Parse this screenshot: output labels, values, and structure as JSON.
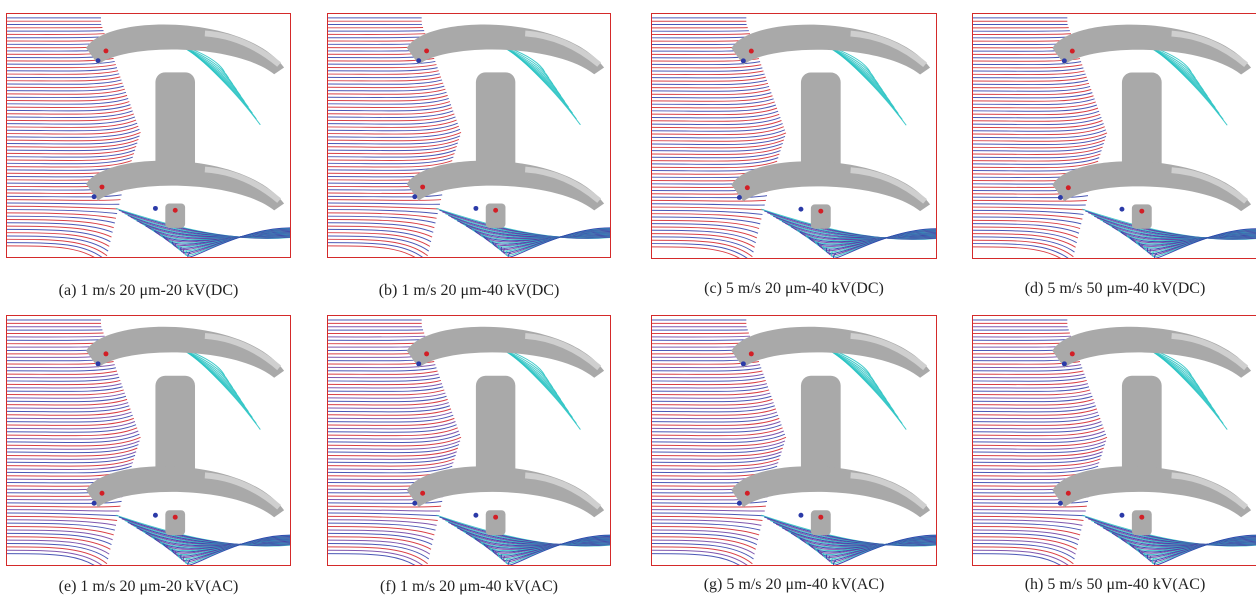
{
  "panels": [
    {
      "caption": "(a) 1 m/s 20 μm-20 kV(DC)"
    },
    {
      "caption": "(b) 1 m/s 20 μm-40 kV(DC)"
    },
    {
      "caption": "(c) 5 m/s 20 μm-40 kV(DC)"
    },
    {
      "caption": "(d) 5 m/s 50 μm-40 kV(DC)"
    },
    {
      "caption": "(e) 1 m/s 20 μm-20 kV(AC)"
    },
    {
      "caption": "(f) 1 m/s 20 μm-40 kV(AC)"
    },
    {
      "caption": "(g) 5 m/s 20 μm-40 kV(AC)"
    },
    {
      "caption": "(h) 5 m/s 50 μm-40 kV(AC)"
    }
  ],
  "colors": {
    "frame": "#d42a2a",
    "insulator": "#a9a9a9",
    "insulator_shade": "#cfcfcf",
    "trajectory_red": "#d21f26",
    "trajectory_blue": "#2b3aa8",
    "trajectory_purple": "#6a3aa0",
    "trajectory_cyan": "#2ec4c4"
  }
}
